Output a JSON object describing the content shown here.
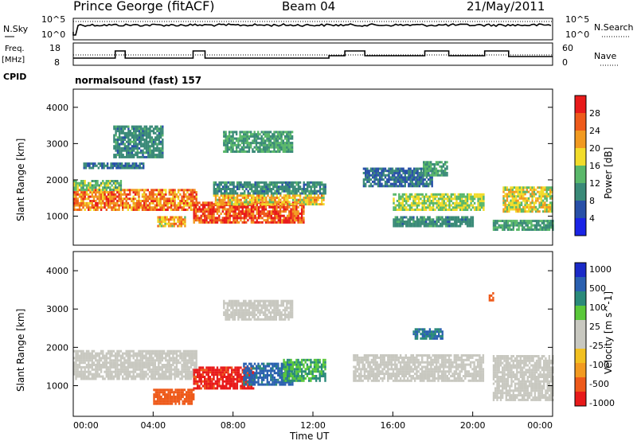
{
  "header": {
    "station": "Prince George (fitACF)",
    "beam": "Beam 04",
    "date": "21/May/2011"
  },
  "noise_panel": {
    "left_label": "N.Sky",
    "left_ticks": [
      "10^5",
      "10^0"
    ],
    "right_label": "N.Search",
    "right_ticks": [
      "10^5",
      "10^0"
    ]
  },
  "freq_panel": {
    "left_label_1": "Freq.",
    "left_label_2": "[MHz]",
    "left_ticks": [
      "18",
      "8"
    ],
    "right_label": "Nave",
    "right_ticks": [
      "60",
      "0"
    ]
  },
  "cpid": {
    "label": "CPID",
    "value": "normalsound (fast) 157"
  },
  "colors": {
    "power_scale": [
      "#1a24e6",
      "#2850a8",
      "#3a8a78",
      "#5ab86a",
      "#f2dc2a",
      "#f29a20",
      "#ee5a1a",
      "#e81a1a"
    ],
    "velocity_scale": [
      "#e81a1a",
      "#ee5a1a",
      "#f29a20",
      "#f2c020",
      "#c8c8c0",
      "#c8c8c0",
      "#5ac83a",
      "#2a8a7a",
      "#2a60b0",
      "#1a2ac8"
    ]
  },
  "chart_data": [
    {
      "type": "heatmap",
      "panel": "power",
      "ylabel": "Slant Range [km]",
      "yticks": [
        "4000",
        "3000",
        "2000",
        "1000"
      ],
      "ylim": [
        200,
        4500
      ],
      "colorbar_label": "Power [dB]",
      "colorbar_ticks": [
        "28",
        "24",
        "20",
        "16",
        "12",
        "8",
        "4"
      ],
      "colorbar_range": [
        0,
        32
      ],
      "bands": [
        {
          "t0": 0.0,
          "t1": 6.2,
          "r0": 1150,
          "r1": 1750,
          "value": 24
        },
        {
          "t0": 0.0,
          "t1": 2.4,
          "r0": 1700,
          "r1": 2000,
          "value": 14
        },
        {
          "t0": 0.5,
          "t1": 3.5,
          "r0": 2300,
          "r1": 2450,
          "value": 8
        },
        {
          "t0": 2.0,
          "t1": 4.5,
          "r0": 2600,
          "r1": 3500,
          "value": 10
        },
        {
          "t0": 4.2,
          "t1": 5.6,
          "r0": 700,
          "r1": 1000,
          "value": 20
        },
        {
          "t0": 6.0,
          "t1": 11.5,
          "r0": 800,
          "r1": 1400,
          "value": 28
        },
        {
          "t0": 7.0,
          "t1": 12.5,
          "r0": 1300,
          "r1": 1600,
          "value": 20
        },
        {
          "t0": 7.0,
          "t1": 12.6,
          "r0": 1600,
          "r1": 1950,
          "value": 10
        },
        {
          "t0": 7.5,
          "t1": 11.0,
          "r0": 2750,
          "r1": 3300,
          "value": 12
        },
        {
          "t0": 14.5,
          "t1": 18.0,
          "r0": 1800,
          "r1": 2300,
          "value": 8
        },
        {
          "t0": 16.0,
          "t1": 20.5,
          "r0": 1150,
          "r1": 1600,
          "value": 16
        },
        {
          "t0": 16.0,
          "t1": 20.0,
          "r0": 700,
          "r1": 1000,
          "value": 10
        },
        {
          "t0": 17.5,
          "t1": 18.7,
          "r0": 2100,
          "r1": 2500,
          "value": 12
        },
        {
          "t0": 21.5,
          "t1": 24.0,
          "r0": 1100,
          "r1": 1800,
          "value": 18
        },
        {
          "t0": 21.0,
          "t1": 24.0,
          "r0": 600,
          "r1": 900,
          "value": 12
        }
      ]
    },
    {
      "type": "heatmap",
      "panel": "velocity",
      "ylabel": "Slant Range [km]",
      "yticks": [
        "4000",
        "3000",
        "2000",
        "1000"
      ],
      "ylim": [
        200,
        4500
      ],
      "colorbar_label": "Velocity [m s^-1]",
      "colorbar_ticks": [
        "1000",
        "500",
        "100",
        "25",
        "-25",
        "-100",
        "-500",
        "-1000"
      ],
      "xlabel": "Time UT",
      "xticks": [
        "00:00",
        "04:00",
        "08:00",
        "12:00",
        "16:00",
        "20:00",
        "00:00"
      ],
      "xlim": [
        0,
        24
      ],
      "bands": [
        {
          "t0": 0.0,
          "t1": 6.2,
          "r0": 1150,
          "r1": 1900,
          "value": 0
        },
        {
          "t0": 4.0,
          "t1": 6.0,
          "r0": 500,
          "r1": 900,
          "value": -150
        },
        {
          "t0": 6.0,
          "t1": 9.0,
          "r0": 900,
          "r1": 1500,
          "value": -600
        },
        {
          "t0": 8.5,
          "t1": 11.0,
          "r0": 1000,
          "r1": 1600,
          "value": 600
        },
        {
          "t0": 10.5,
          "t1": 12.6,
          "r0": 1100,
          "r1": 1700,
          "value": 100
        },
        {
          "t0": 7.5,
          "t1": 11.0,
          "r0": 2700,
          "r1": 3200,
          "value": 0
        },
        {
          "t0": 14.0,
          "t1": 20.5,
          "r0": 1100,
          "r1": 1800,
          "value": 0
        },
        {
          "t0": 17.0,
          "t1": 18.5,
          "r0": 2200,
          "r1": 2500,
          "value": 500
        },
        {
          "t0": 21.0,
          "t1": 24.0,
          "r0": 600,
          "r1": 1800,
          "value": 0
        },
        {
          "t0": 20.8,
          "t1": 21.0,
          "r0": 3200,
          "r1": 3400,
          "value": -200
        }
      ]
    }
  ]
}
